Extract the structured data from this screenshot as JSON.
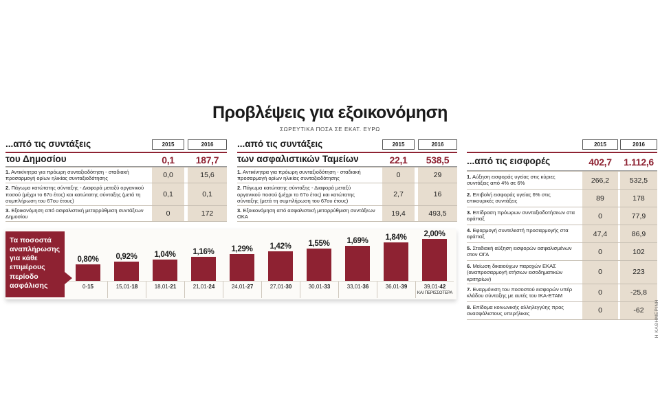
{
  "header": {
    "title": "Προβλέψεις για εξοικονόμηση",
    "subtitle": "ΣΩΡΕΥΤΙΚΑ ΠΟΣΑ ΣΕ ΕΚΑΤ. ΕΥΡΩ"
  },
  "colors": {
    "accent": "#8e2232",
    "cell": "#e7ddcf"
  },
  "credit": "Η ΚΑΘΗΜΕΡΙΝΗ",
  "tables": [
    {
      "title_lines": [
        "...από τις συντάξεις",
        "του Δημοσίου"
      ],
      "years": [
        "2015",
        "2016"
      ],
      "totals": [
        "0,1",
        "187,7"
      ],
      "rows": [
        {
          "num": "1.",
          "text": "Αντικίνητρα για πρόωρη συνταξιοδότηση - σταδιακή προσαρμογή ορίων ηλικίας συνταξιοδότησης",
          "v2015": "0,0",
          "v2016": "15,6"
        },
        {
          "num": "2.",
          "text": "Πάγωμα κατώτατης σύνταξης - Διαφορά μεταξύ οργανικού ποσού (μέχρι το 67ο έτος) και κατώτατης σύνταξης (μετά τη συμπλήρωση του 67ου έτους)",
          "v2015": "0,1",
          "v2016": "0,1"
        },
        {
          "num": "3.",
          "text": "Εξοικονόμηση από ασφαλιστική μεταρρύθμιση συντάξεων Δημοσίου",
          "v2015": "0",
          "v2016": "172"
        }
      ]
    },
    {
      "title_lines": [
        "...από τις συντάξεις",
        "των ασφαλιστικών Ταμείων"
      ],
      "years": [
        "2015",
        "2016"
      ],
      "totals": [
        "22,1",
        "538,5"
      ],
      "rows": [
        {
          "num": "1.",
          "text": "Αντικίνητρα για πρόωρη συνταξιοδότηση - σταδιακή προσαρμογή ορίων ηλικίας συνταξιοδότησης",
          "v2015": "0",
          "v2016": "29"
        },
        {
          "num": "2.",
          "text": "Πάγωμα κατώτατης σύνταξης - Διαφορά μεταξύ οργανικού ποσού (μέχρι το 67ο έτος) και κατώτατης σύνταξης (μετά τη συμπλήρωση του 67ου έτους)",
          "v2015": "2,7",
          "v2016": "16"
        },
        {
          "num": "3.",
          "text": "Εξοικονόμηση από ασφαλιστική μεταρρύθμιση συντάξεων ΟΚΑ",
          "v2015": "19,4",
          "v2016": "493,5"
        }
      ]
    },
    {
      "title_lines": [
        "",
        "...από τις εισφορές"
      ],
      "years": [
        "2015",
        "2016"
      ],
      "totals": [
        "402,7",
        "1.112,6"
      ],
      "rows": [
        {
          "num": "1.",
          "text": "Αύξηση εισφοράς υγείας στις κύριες συντάξεις από 4% σε 6%",
          "v2015": "266,2",
          "v2016": "532,5"
        },
        {
          "num": "2.",
          "text": "Επιβολή εισφοράς υγείας 6% στις επικουρικές συντάξεις",
          "v2015": "89",
          "v2016": "178"
        },
        {
          "num": "3.",
          "text": "Επίδραση πρόωρων συνταξιοδοτήσεων στα εφάπαξ",
          "v2015": "0",
          "v2016": "77,9"
        },
        {
          "num": "4.",
          "text": "Εφαρμογή συντελεστή προσαρμογής στα εφάπαξ",
          "v2015": "47,4",
          "v2016": "86,9"
        },
        {
          "num": "5.",
          "text": "Σταδιακή αύξηση εισφορών ασφαλισμένων στον ΟΓΑ",
          "v2015": "0",
          "v2016": "102"
        },
        {
          "num": "6.",
          "text": "Μείωση δικαιούχων παροχών ΕΚΑΣ (αναπροσαρμογή ετήσιων εισοδηματικών κριτηρίων)",
          "v2015": "0",
          "v2016": "223"
        },
        {
          "num": "7.",
          "text": "Εναρμόνιση του ποσοστού εισφορών υπέρ κλάδου σύνταξης με αυτές του ΙΚΑ-ΕΤΑΜ",
          "v2015": "0",
          "v2016": "-25,8"
        },
        {
          "num": "8.",
          "text": "Επίδομα κοινωνικής αλληλεγγύης προς ανασφάλιστους υπερήλικες",
          "v2015": "0",
          "v2016": "-62"
        }
      ]
    }
  ],
  "chart_data": {
    "type": "bar",
    "title": "Τα ποσοστά αναπλήρωσης για κάθε επιμέρους περίοδο ασφάλισης",
    "values": [
      0.8,
      0.92,
      1.04,
      1.16,
      1.29,
      1.42,
      1.55,
      1.69,
      1.84,
      2.0
    ],
    "bar_labels": [
      "0,80%",
      "0,92%",
      "1,04%",
      "1,16%",
      "1,29%",
      "1,42%",
      "1,55%",
      "1,69%",
      "1,84%",
      "2,00%"
    ],
    "categories": [
      {
        "pre": "0-",
        "bold": "15",
        "extra": ""
      },
      {
        "pre": "15,01-",
        "bold": "18",
        "extra": ""
      },
      {
        "pre": "18,01-",
        "bold": "21",
        "extra": ""
      },
      {
        "pre": "21,01-",
        "bold": "24",
        "extra": ""
      },
      {
        "pre": "24,01-",
        "bold": "27",
        "extra": ""
      },
      {
        "pre": "27,01-",
        "bold": "30",
        "extra": ""
      },
      {
        "pre": "30,01-",
        "bold": "33",
        "extra": ""
      },
      {
        "pre": "33,01-",
        "bold": "36",
        "extra": ""
      },
      {
        "pre": "36,01-",
        "bold": "39",
        "extra": ""
      },
      {
        "pre": "39,01-",
        "bold": "42",
        "extra": "ΚΑΙ ΠΕΡΙΣΣΟΤΕΡΑ"
      }
    ],
    "ylim": [
      0,
      2.0
    ],
    "legend": "none",
    "grid": "off"
  }
}
